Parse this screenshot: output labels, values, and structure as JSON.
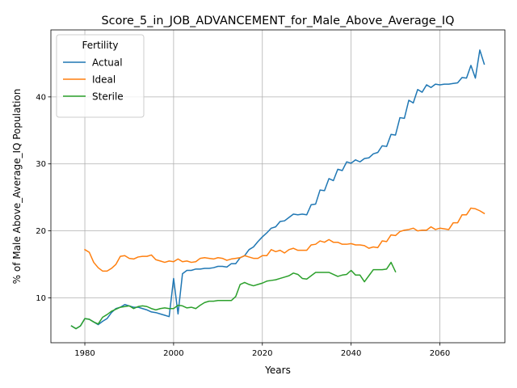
{
  "chart_data": {
    "type": "line",
    "title": "Score_5_in_JOB_ADVANCEMENT_for_Male_Above_Average_IQ",
    "xlabel": "Years",
    "ylabel": "% of Male Above_Average_IQ Population",
    "xlim": [
      1972.35,
      2074.65
    ],
    "ylim": [
      3.3,
      50.0
    ],
    "xticks": [
      1980,
      2000,
      2020,
      2040,
      2060
    ],
    "yticks": [
      10,
      20,
      30,
      40
    ],
    "grid": true,
    "legend": {
      "title": "Fertility",
      "position": "top-left"
    },
    "series": [
      {
        "name": "Actual",
        "color": "#1f77b4",
        "x": [
          1977,
          1978,
          1979,
          1980,
          1981,
          1982,
          1983,
          1984,
          1985,
          1986,
          1987,
          1988,
          1989,
          1990,
          1991,
          1992,
          1993,
          1994,
          1995,
          1996,
          1997,
          1998,
          1999,
          2000,
          2001,
          2002,
          2003,
          2004,
          2005,
          2006,
          2007,
          2008,
          2009,
          2010,
          2011,
          2012,
          2013,
          2014,
          2015,
          2016,
          2017,
          2018,
          2019,
          2020,
          2021,
          2022,
          2023,
          2024,
          2025,
          2026,
          2027,
          2028,
          2029,
          2030,
          2031,
          2032,
          2033,
          2034,
          2035,
          2036,
          2037,
          2038,
          2039,
          2040,
          2041,
          2042,
          2043,
          2044,
          2045,
          2046,
          2047,
          2048,
          2049,
          2050,
          2051,
          2052,
          2053,
          2054,
          2055,
          2056,
          2057,
          2058,
          2059,
          2060,
          2061,
          2062,
          2063,
          2064,
          2065,
          2066,
          2067,
          2068,
          2069,
          2070
        ],
        "y": [
          5.8,
          5.4,
          5.8,
          6.9,
          6.8,
          6.4,
          6.0,
          6.5,
          6.9,
          7.8,
          8.4,
          8.6,
          9.0,
          8.8,
          8.6,
          8.6,
          8.4,
          8.2,
          7.9,
          7.8,
          7.6,
          7.4,
          7.2,
          12.9,
          7.6,
          13.6,
          14.1,
          14.1,
          14.3,
          14.3,
          14.4,
          14.4,
          14.5,
          14.7,
          14.7,
          14.6,
          15.1,
          15.1,
          16.0,
          16.3,
          17.2,
          17.6,
          18.4,
          19.1,
          19.7,
          20.4,
          20.6,
          21.4,
          21.5,
          22.0,
          22.5,
          22.4,
          22.5,
          22.4,
          23.9,
          24.0,
          26.1,
          26.0,
          27.8,
          27.5,
          29.2,
          29.0,
          30.3,
          30.1,
          30.6,
          30.3,
          30.8,
          30.9,
          31.5,
          31.7,
          32.7,
          32.6,
          34.4,
          34.3,
          36.9,
          36.8,
          39.5,
          39.1,
          41.1,
          40.7,
          41.8,
          41.4,
          41.9,
          41.8,
          41.9,
          41.9,
          42.0,
          42.1,
          42.9,
          42.8,
          44.7,
          42.8,
          47.0,
          44.9
        ]
      },
      {
        "name": "Ideal",
        "color": "#ff7f0e",
        "x": [
          1980,
          1981,
          1982,
          1983,
          1984,
          1985,
          1986,
          1987,
          1988,
          1989,
          1990,
          1991,
          1992,
          1993,
          1994,
          1995,
          1996,
          1997,
          1998,
          1999,
          2000,
          2001,
          2002,
          2003,
          2004,
          2005,
          2006,
          2007,
          2008,
          2009,
          2010,
          2011,
          2012,
          2013,
          2014,
          2015,
          2016,
          2017,
          2018,
          2019,
          2020,
          2021,
          2022,
          2023,
          2024,
          2025,
          2026,
          2027,
          2028,
          2029,
          2030,
          2031,
          2032,
          2033,
          2034,
          2035,
          2036,
          2037,
          2038,
          2039,
          2040,
          2041,
          2042,
          2043,
          2044,
          2045,
          2046,
          2047,
          2048,
          2049,
          2050,
          2051,
          2052,
          2053,
          2054,
          2055,
          2056,
          2057,
          2058,
          2059,
          2060,
          2061,
          2062,
          2063,
          2064,
          2065,
          2066,
          2067,
          2068,
          2069,
          2070
        ],
        "y": [
          17.2,
          16.8,
          15.3,
          14.5,
          14.0,
          14.0,
          14.4,
          15.0,
          16.2,
          16.3,
          15.9,
          15.8,
          16.1,
          16.2,
          16.2,
          16.4,
          15.7,
          15.5,
          15.3,
          15.5,
          15.4,
          15.8,
          15.4,
          15.5,
          15.3,
          15.4,
          15.9,
          16.0,
          15.9,
          15.8,
          16.0,
          15.9,
          15.6,
          15.8,
          15.9,
          16.0,
          16.3,
          16.1,
          15.9,
          15.9,
          16.3,
          16.3,
          17.2,
          16.9,
          17.1,
          16.7,
          17.2,
          17.4,
          17.1,
          17.1,
          17.1,
          17.9,
          18.0,
          18.5,
          18.3,
          18.7,
          18.3,
          18.3,
          18.0,
          18.0,
          18.1,
          17.9,
          17.9,
          17.8,
          17.4,
          17.6,
          17.5,
          18.5,
          18.4,
          19.4,
          19.3,
          19.9,
          20.1,
          20.2,
          20.4,
          20.0,
          20.1,
          20.1,
          20.6,
          20.2,
          20.4,
          20.3,
          20.2,
          21.2,
          21.2,
          22.4,
          22.4,
          23.4,
          23.3,
          23.0,
          22.6
        ]
      },
      {
        "name": "Sterile",
        "color": "#2ca02c",
        "x": [
          1977,
          1978,
          1979,
          1980,
          1981,
          1982,
          1983,
          1984,
          1985,
          1986,
          1987,
          1988,
          1989,
          1990,
          1991,
          1992,
          1993,
          1994,
          1995,
          1996,
          1997,
          1998,
          1999,
          2000,
          2001,
          2002,
          2003,
          2004,
          2005,
          2006,
          2007,
          2008,
          2009,
          2010,
          2011,
          2012,
          2013,
          2014,
          2015,
          2016,
          2017,
          2018,
          2019,
          2020,
          2021,
          2022,
          2023,
          2024,
          2025,
          2026,
          2027,
          2028,
          2029,
          2030,
          2031,
          2032,
          2033,
          2034,
          2035,
          2036,
          2037,
          2038,
          2039,
          2040,
          2041,
          2042,
          2043,
          2044,
          2045,
          2046,
          2047,
          2048,
          2049,
          2050
        ],
        "y": [
          5.8,
          5.4,
          5.8,
          6.9,
          6.8,
          6.4,
          6.1,
          7.1,
          7.5,
          8.0,
          8.3,
          8.6,
          8.7,
          8.8,
          8.4,
          8.7,
          8.8,
          8.7,
          8.4,
          8.2,
          8.4,
          8.5,
          8.4,
          8.4,
          8.9,
          8.8,
          8.5,
          8.6,
          8.4,
          8.9,
          9.3,
          9.5,
          9.5,
          9.6,
          9.6,
          9.6,
          9.6,
          10.2,
          12.0,
          12.3,
          12.0,
          11.8,
          12.0,
          12.2,
          12.5,
          12.6,
          12.7,
          12.9,
          13.1,
          13.3,
          13.7,
          13.5,
          12.9,
          12.8,
          13.3,
          13.8,
          13.8,
          13.8,
          13.8,
          13.5,
          13.2,
          13.4,
          13.5,
          14.1,
          13.4,
          13.4,
          12.4,
          13.3,
          14.2,
          14.2,
          14.2,
          14.3,
          15.3,
          13.9
        ]
      }
    ]
  }
}
